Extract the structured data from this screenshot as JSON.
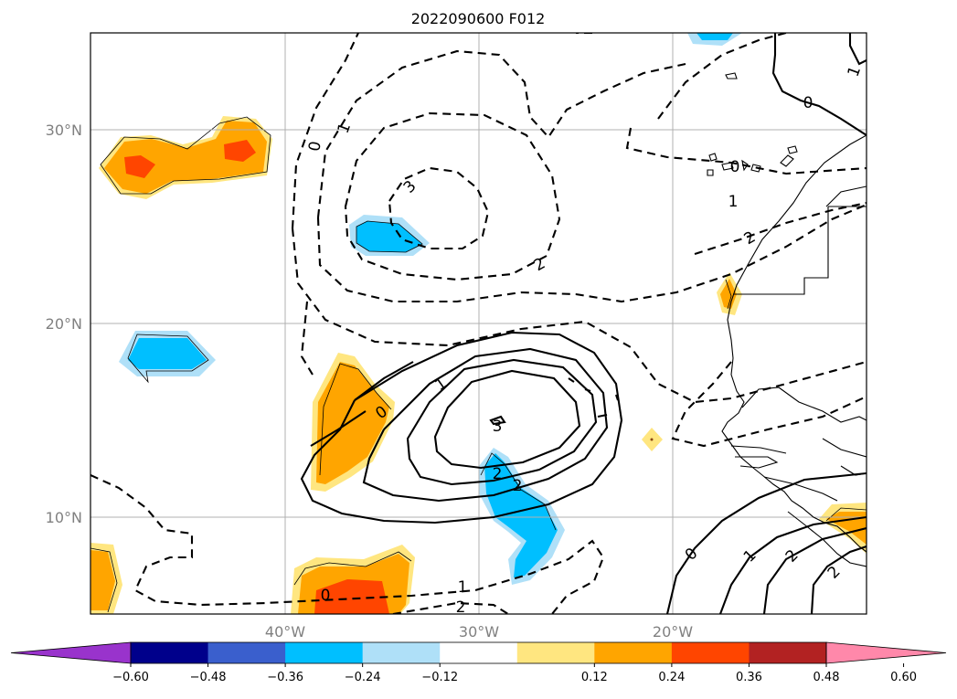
{
  "title": "2022090600 F012",
  "map": {
    "lat_ticks": [
      "10°N",
      "20°N",
      "30°N"
    ],
    "lon_ticks": [
      "40°W",
      "30°W",
      "20°W"
    ],
    "grid": true,
    "extent": {
      "lon_min": -50,
      "lon_max": -10,
      "lat_min": 5,
      "lat_max": 35
    }
  },
  "colorbar": {
    "ticks": [
      "−0.60",
      "−0.48",
      "−0.36",
      "−0.24",
      "−0.12",
      "0.12",
      "0.24",
      "0.36",
      "0.48",
      "0.60"
    ],
    "colors": [
      "#9933cc",
      "#00008b",
      "#3a5fcd",
      "#00bfff",
      "#afe0f8",
      "#ffffff",
      "#ffe680",
      "#ffa500",
      "#ff4500",
      "#b22222",
      "#ff88aa"
    ],
    "extend": "both"
  },
  "contour_labels": {
    "pos_center": "3",
    "pos_ring_2a": "2",
    "pos_ring_2b": "2",
    "pos_ring_1": "1",
    "zero_mid": "0",
    "zero_left_top": "0",
    "zero_bottom": "0",
    "zero_se": "0",
    "zero_ne": "0",
    "zero_africa": "0",
    "zero_corner": "1",
    "se_1": "1",
    "se_2": "2",
    "se_3": "2",
    "neg_3": "3",
    "neg_2": "2",
    "neg_1": "1",
    "neg_1b": "1",
    "neg_2b": "2",
    "neg_1c": "1",
    "neg_2c": "2"
  },
  "colors": {
    "orange": "#ffa500",
    "red_orange": "#ff4500",
    "light_yellow": "#ffe680",
    "cyan": "#00bfff",
    "light_blue": "#afe0f8",
    "grid": "#b0b0b0"
  }
}
